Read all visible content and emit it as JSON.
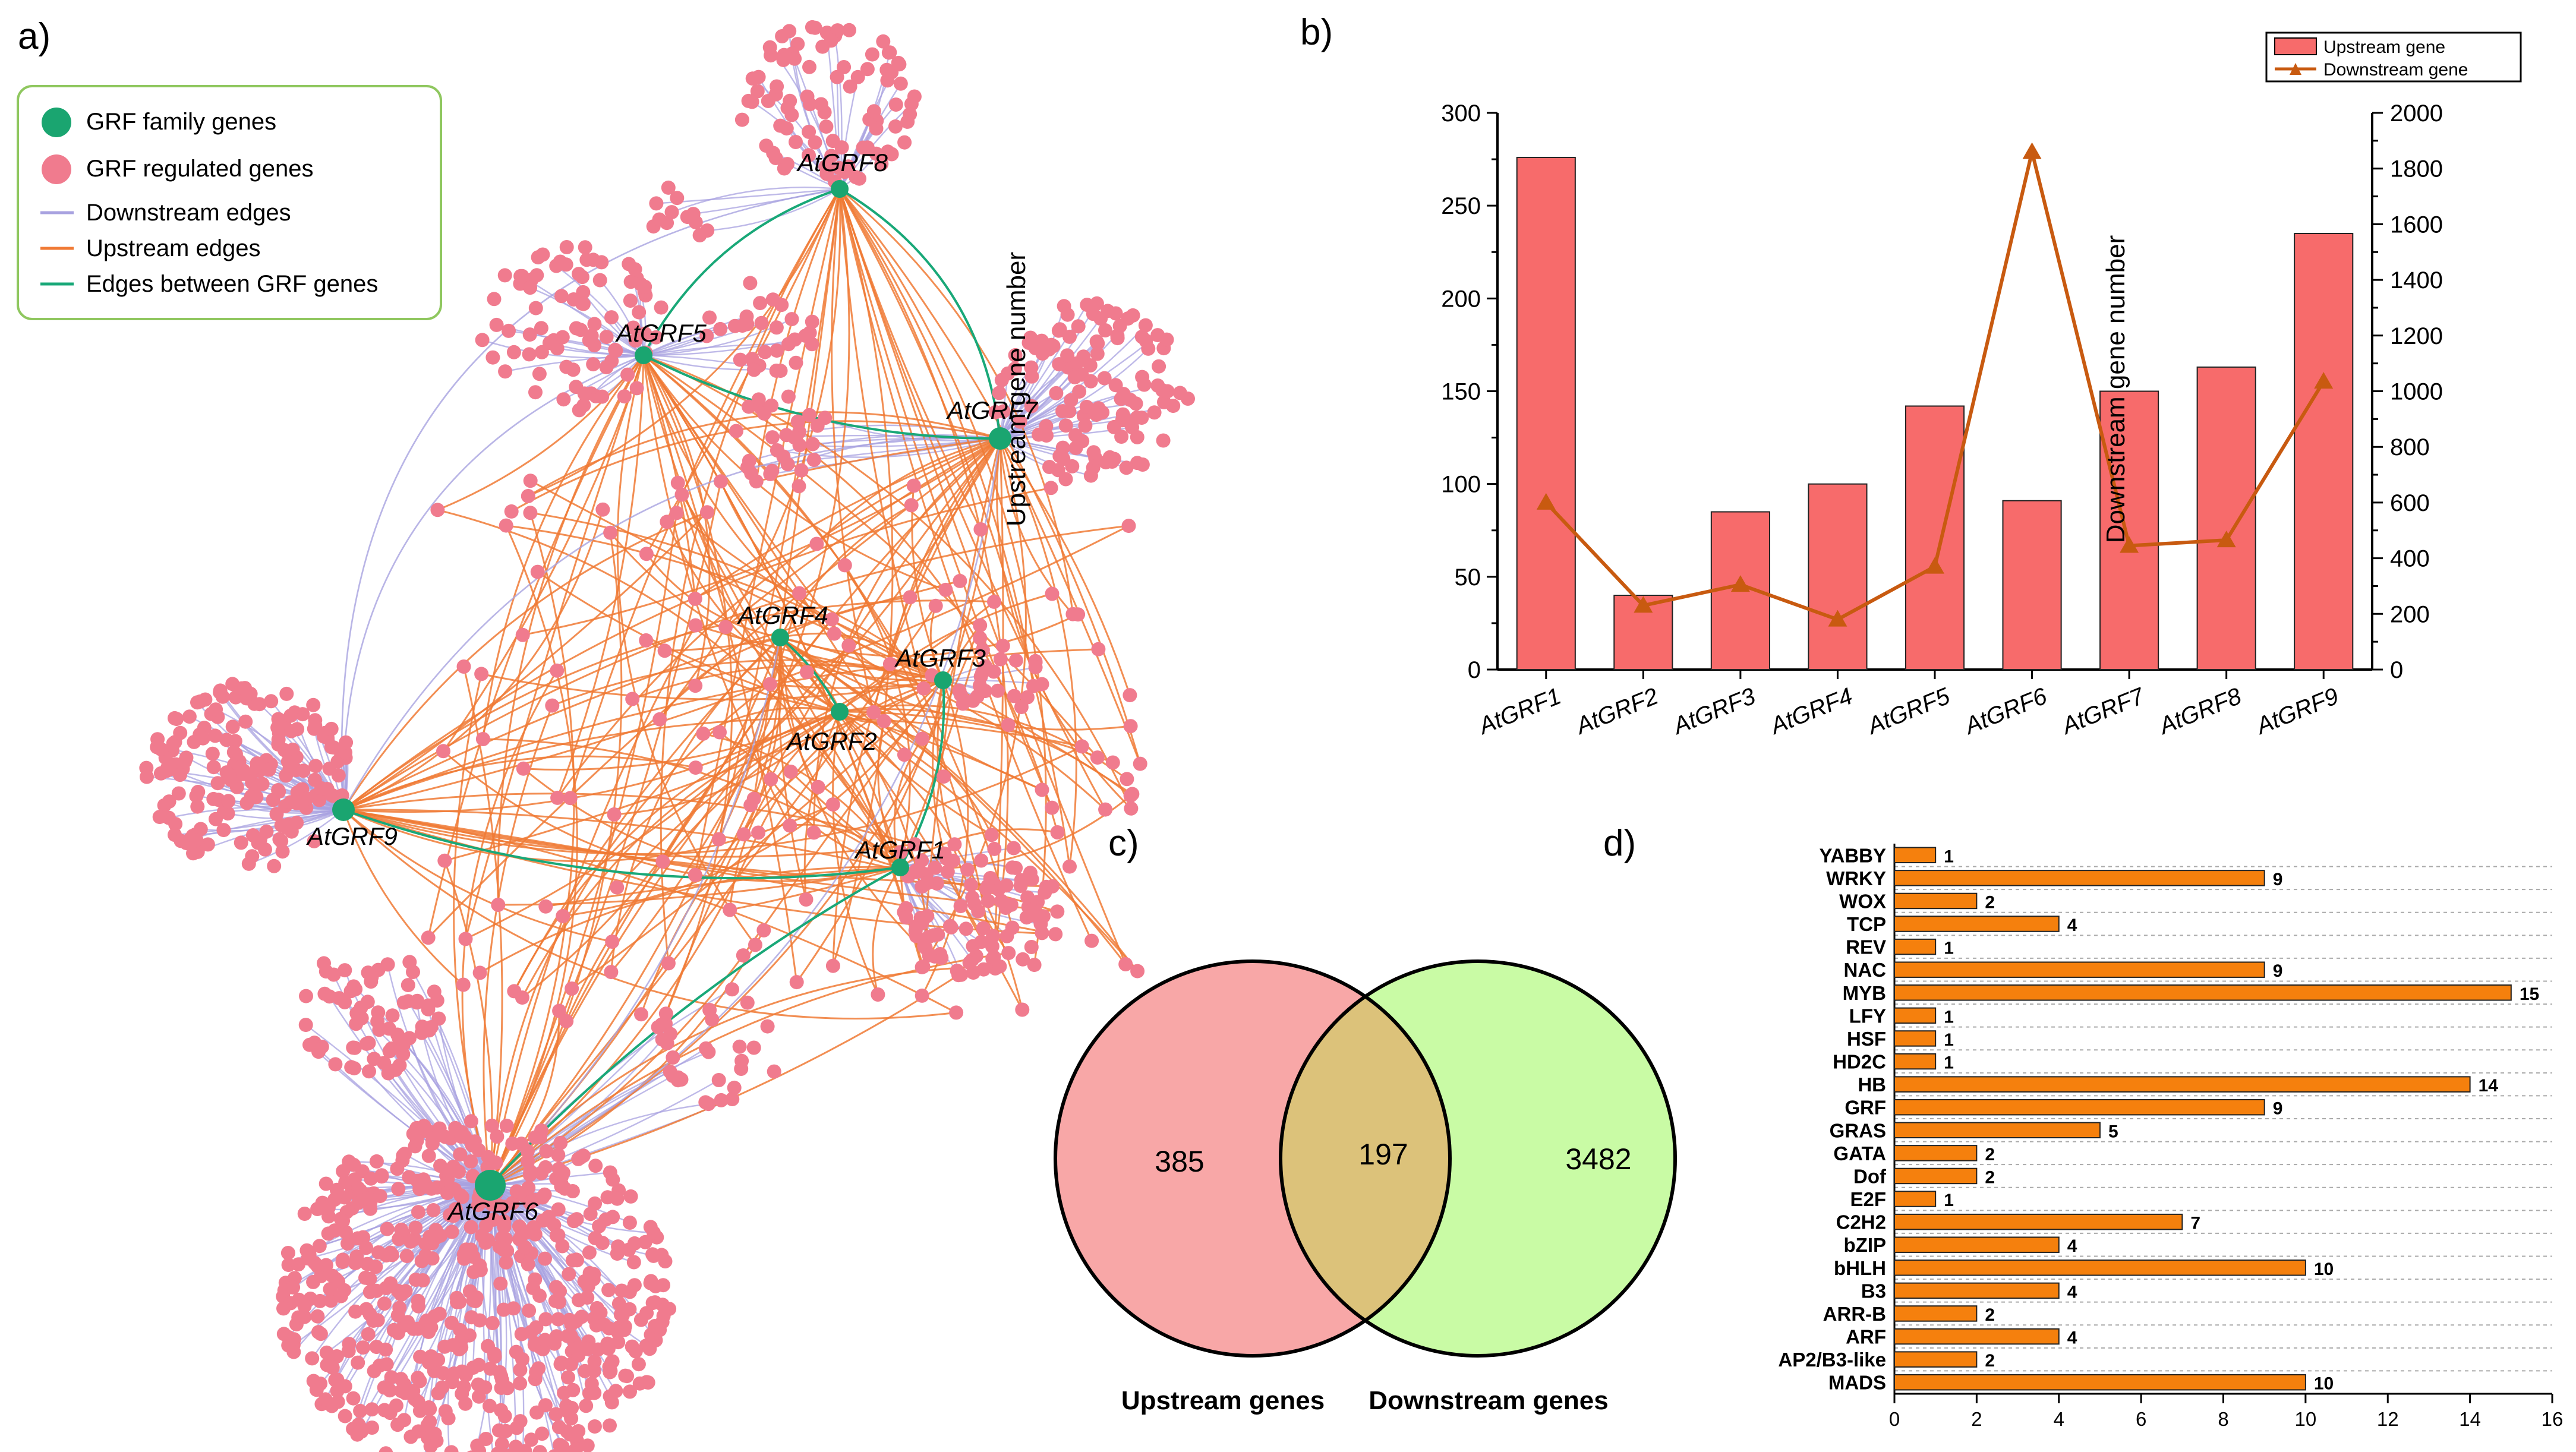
{
  "colors": {
    "grf_node": "#1aa570",
    "regulated_node": "#f07b8e",
    "downstream_edge": "#a8a2e0",
    "upstream_edge": "#f07a35",
    "grf_edge": "#19a878",
    "bar_fill": "#f76b6b",
    "line_color": "#c85a10",
    "hbar_fill": "#f5800d",
    "venn_left": "#f8a7a7",
    "venn_right": "#c9fba5",
    "venn_overlap": "#dcc27a",
    "legend_border": "#8fc75f"
  },
  "panels": {
    "a": "a)",
    "b": "b)",
    "c": "c)",
    "d": "d)"
  },
  "network": {
    "legend": {
      "family": "GRF family genes",
      "regulated": "GRF regulated genes",
      "downstream": "Downstream edges",
      "upstream": "Upstream edges",
      "between": "Edges between GRF genes"
    },
    "nodes": [
      "AtGRF1",
      "AtGRF2",
      "AtGRF3",
      "AtGRF4",
      "AtGRF5",
      "AtGRF6",
      "AtGRF7",
      "AtGRF8",
      "AtGRF9"
    ]
  },
  "venn": {
    "upstream_only": "385",
    "shared": "197",
    "downstream_only": "3482",
    "left_label": "Upstream genes",
    "right_label": "Downstream genes"
  },
  "chart_data": [
    {
      "panel": "b",
      "type": "bar",
      "categories": [
        "AtGRF1",
        "AtGRF2",
        "AtGRF3",
        "AtGRF4",
        "AtGRF5",
        "AtGRF6",
        "AtGRF7",
        "AtGRF8",
        "AtGRF9"
      ],
      "series": [
        {
          "name": "Upstream gene",
          "type": "bar",
          "axis": "left",
          "values": [
            276,
            40,
            85,
            100,
            142,
            91,
            150,
            163,
            235
          ]
        },
        {
          "name": "Downstream gene",
          "type": "line",
          "axis": "right",
          "values": [
            600,
            230,
            305,
            180,
            370,
            1860,
            445,
            465,
            1035
          ]
        }
      ],
      "ylabel": "Upstream gene number",
      "y2label": "Downstream gene number",
      "ylim": [
        0,
        300
      ],
      "y2lim": [
        0,
        2000
      ],
      "yticks": [
        "0",
        "50",
        "100",
        "150",
        "200",
        "250",
        "300"
      ],
      "y2ticks": [
        "0",
        "200",
        "400",
        "600",
        "800",
        "1000",
        "1200",
        "1400",
        "1600",
        "1800",
        "2000"
      ],
      "legend": "top-right"
    },
    {
      "panel": "d",
      "type": "bar",
      "orientation": "horizontal",
      "categories": [
        "YABBY",
        "WRKY",
        "WOX",
        "TCP",
        "REV",
        "NAC",
        "MYB",
        "LFY",
        "HSF",
        "HD2C",
        "HB",
        "GRF",
        "GRAS",
        "GATA",
        "Dof",
        "E2F",
        "C2H2",
        "bZIP",
        "bHLH",
        "B3",
        "ARR-B",
        "ARF",
        "AP2/B3-like",
        "MADS"
      ],
      "values": [
        1,
        9,
        2,
        4,
        1,
        9,
        15,
        1,
        1,
        1,
        14,
        9,
        5,
        2,
        2,
        1,
        7,
        4,
        10,
        4,
        2,
        4,
        2,
        10
      ],
      "value_labels": [
        "1",
        "9",
        "2",
        "4",
        "1",
        "9",
        "15",
        "1",
        "1",
        "1",
        "14",
        "9",
        "5",
        "2",
        "2",
        "1",
        "7",
        "4",
        "10",
        "4",
        "2",
        "4",
        "2",
        "10"
      ],
      "xlim": [
        0,
        16
      ],
      "xticks": [
        "0",
        "2",
        "4",
        "6",
        "8",
        "10",
        "12",
        "14",
        "16"
      ]
    }
  ]
}
